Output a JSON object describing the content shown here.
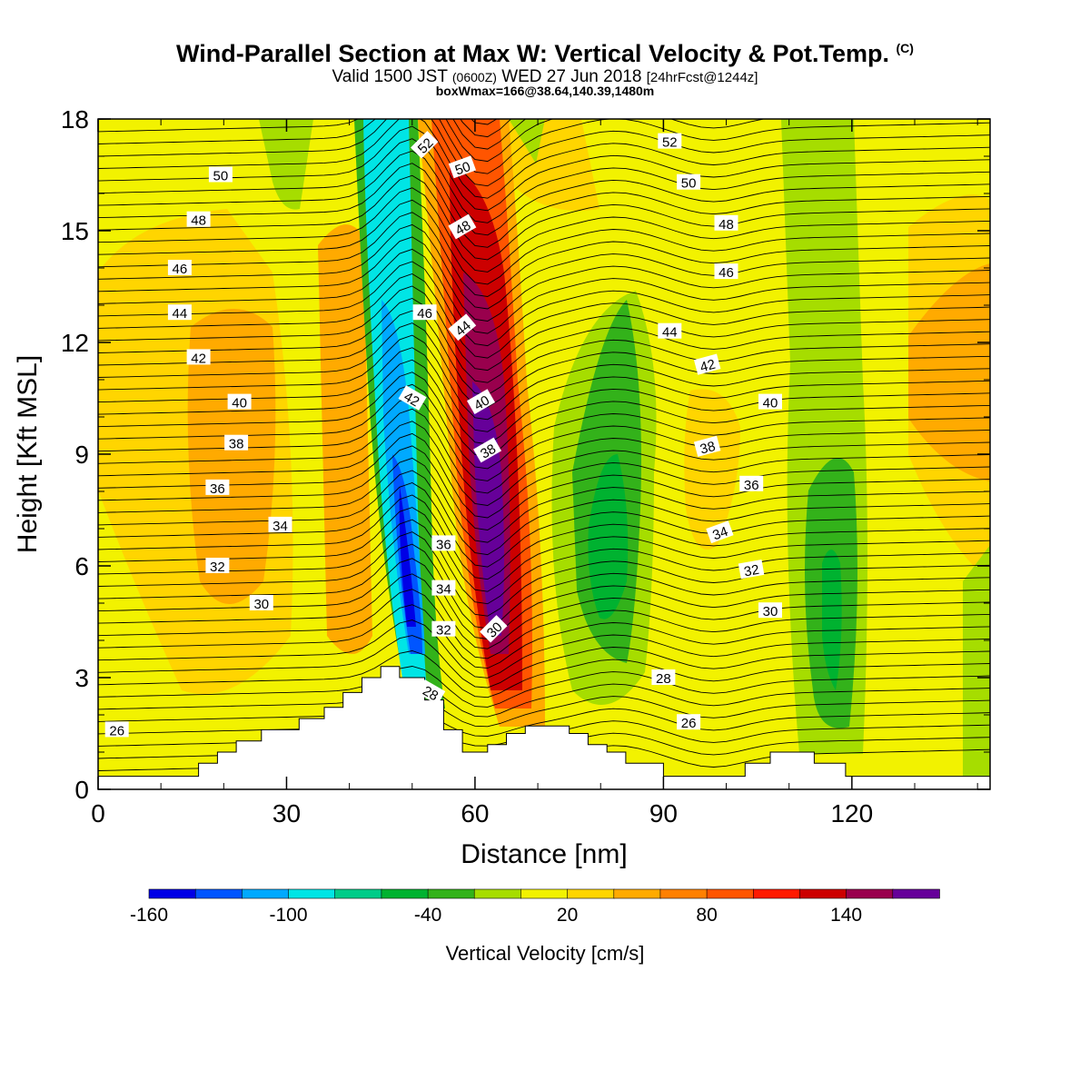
{
  "title": {
    "main": "Wind-Parallel Section at Max W: Vertical Velocity & Pot.Temp.",
    "main_suffix": "(C)",
    "valid": "Valid 1500 JST",
    "valid_small": "(0600Z)",
    "valid_date": "WED 27 Jun 2018",
    "valid_fcst": "[24hrFcst@1244z]",
    "box": "boxWmax=166@38.64,140.39,1480m"
  },
  "chart_data": {
    "type": "heatmap",
    "xlabel": "Distance [nm]",
    "ylabel": "Height [Kft MSL]",
    "xlim": [
      0,
      142
    ],
    "ylim": [
      0,
      18
    ],
    "x_ticks": [
      0,
      30,
      60,
      90,
      120
    ],
    "y_ticks": [
      0,
      3,
      6,
      9,
      12,
      15,
      18
    ],
    "colorbar": {
      "label": "Vertical Velocity [cm/s]",
      "tick_labels": [
        "-160",
        "-100",
        "-40",
        "20",
        "80",
        "140"
      ],
      "colors": [
        "#0000e6",
        "#0055ff",
        "#00a9ff",
        "#00e5e5",
        "#00cc88",
        "#00b230",
        "#33b21a",
        "#a6dd00",
        "#f2f200",
        "#ffd500",
        "#ffaa00",
        "#ff8000",
        "#ff5500",
        "#ff1a00",
        "#cc0000",
        "#99004d",
        "#660099"
      ]
    },
    "updraft_max": {
      "distance": 62,
      "height_top": 12.5,
      "height_bottom": 4,
      "value": 166
    },
    "downdraft_min": {
      "distance": 50,
      "height_top": 8.5,
      "height_bottom": 4,
      "value": -160
    },
    "terrain_profile": [
      [
        0,
        0.35
      ],
      [
        16,
        0.35
      ],
      [
        16,
        0.7
      ],
      [
        19,
        0.7
      ],
      [
        19,
        1.0
      ],
      [
        22,
        1.0
      ],
      [
        22,
        1.3
      ],
      [
        26,
        1.3
      ],
      [
        26,
        1.6
      ],
      [
        32,
        1.6
      ],
      [
        32,
        1.9
      ],
      [
        36,
        1.9
      ],
      [
        36,
        2.2
      ],
      [
        39,
        2.2
      ],
      [
        39,
        2.6
      ],
      [
        42,
        2.6
      ],
      [
        42,
        3.0
      ],
      [
        45,
        3.0
      ],
      [
        45,
        3.3
      ],
      [
        48,
        3.3
      ],
      [
        48,
        3.0
      ],
      [
        52,
        3.0
      ],
      [
        52,
        2.4
      ],
      [
        55,
        2.4
      ],
      [
        55,
        1.6
      ],
      [
        58,
        1.6
      ],
      [
        58,
        1.0
      ],
      [
        62,
        1.0
      ],
      [
        62,
        1.2
      ],
      [
        65,
        1.2
      ],
      [
        65,
        1.5
      ],
      [
        68,
        1.5
      ],
      [
        68,
        1.7
      ],
      [
        75,
        1.7
      ],
      [
        75,
        1.5
      ],
      [
        78,
        1.5
      ],
      [
        78,
        1.2
      ],
      [
        81,
        1.2
      ],
      [
        81,
        1.0
      ],
      [
        84,
        1.0
      ],
      [
        84,
        0.7
      ],
      [
        90,
        0.7
      ],
      [
        90,
        0.35
      ],
      [
        103,
        0.35
      ],
      [
        103,
        0.7
      ],
      [
        107,
        0.7
      ],
      [
        107,
        1.0
      ],
      [
        114,
        1.0
      ],
      [
        114,
        0.7
      ],
      [
        119,
        0.7
      ],
      [
        119,
        0.35
      ],
      [
        142,
        0.35
      ]
    ],
    "theta_labels": [
      {
        "value": "50",
        "x": 19.5,
        "y": 16.5
      },
      {
        "value": "48",
        "x": 16,
        "y": 15.3
      },
      {
        "value": "46",
        "x": 13,
        "y": 14.0
      },
      {
        "value": "44",
        "x": 13,
        "y": 12.8
      },
      {
        "value": "42",
        "x": 16,
        "y": 11.6
      },
      {
        "value": "40",
        "x": 22.5,
        "y": 10.4
      },
      {
        "value": "38",
        "x": 22,
        "y": 9.3
      },
      {
        "value": "36",
        "x": 19,
        "y": 8.1
      },
      {
        "value": "34",
        "x": 29,
        "y": 7.1
      },
      {
        "value": "32",
        "x": 19,
        "y": 6.0
      },
      {
        "value": "30",
        "x": 26,
        "y": 5.0
      },
      {
        "value": "26",
        "x": 3,
        "y": 1.6
      },
      {
        "value": "52",
        "x": 52,
        "y": 17.3,
        "rot": -45
      },
      {
        "value": "50",
        "x": 58,
        "y": 16.7,
        "rot": -20
      },
      {
        "value": "48",
        "x": 58,
        "y": 15.1,
        "rot": -30
      },
      {
        "value": "46",
        "x": 52,
        "y": 12.8
      },
      {
        "value": "44",
        "x": 58,
        "y": 12.4,
        "rot": -40
      },
      {
        "value": "42",
        "x": 50,
        "y": 10.5,
        "rot": 30
      },
      {
        "value": "40",
        "x": 61,
        "y": 10.4,
        "rot": -30
      },
      {
        "value": "38",
        "x": 62,
        "y": 9.1,
        "rot": -30
      },
      {
        "value": "36",
        "x": 55,
        "y": 6.6
      },
      {
        "value": "34",
        "x": 55,
        "y": 5.4
      },
      {
        "value": "32",
        "x": 55,
        "y": 4.3
      },
      {
        "value": "30",
        "x": 63,
        "y": 4.3,
        "rot": -45
      },
      {
        "value": "28",
        "x": 53,
        "y": 2.6,
        "rot": 30
      },
      {
        "value": "52",
        "x": 91,
        "y": 17.4
      },
      {
        "value": "50",
        "x": 94,
        "y": 16.3
      },
      {
        "value": "48",
        "x": 100,
        "y": 15.2
      },
      {
        "value": "46",
        "x": 100,
        "y": 13.9
      },
      {
        "value": "44",
        "x": 91,
        "y": 12.3
      },
      {
        "value": "42",
        "x": 97,
        "y": 11.4,
        "rot": -15
      },
      {
        "value": "40",
        "x": 107,
        "y": 10.4
      },
      {
        "value": "38",
        "x": 97,
        "y": 9.2,
        "rot": -15
      },
      {
        "value": "36",
        "x": 104,
        "y": 8.2
      },
      {
        "value": "34",
        "x": 99,
        "y": 6.9,
        "rot": -20
      },
      {
        "value": "32",
        "x": 104,
        "y": 5.9,
        "rot": -10
      },
      {
        "value": "30",
        "x": 107,
        "y": 4.8
      },
      {
        "value": "28",
        "x": 90,
        "y": 3.0
      },
      {
        "value": "26",
        "x": 94,
        "y": 1.8
      }
    ]
  }
}
